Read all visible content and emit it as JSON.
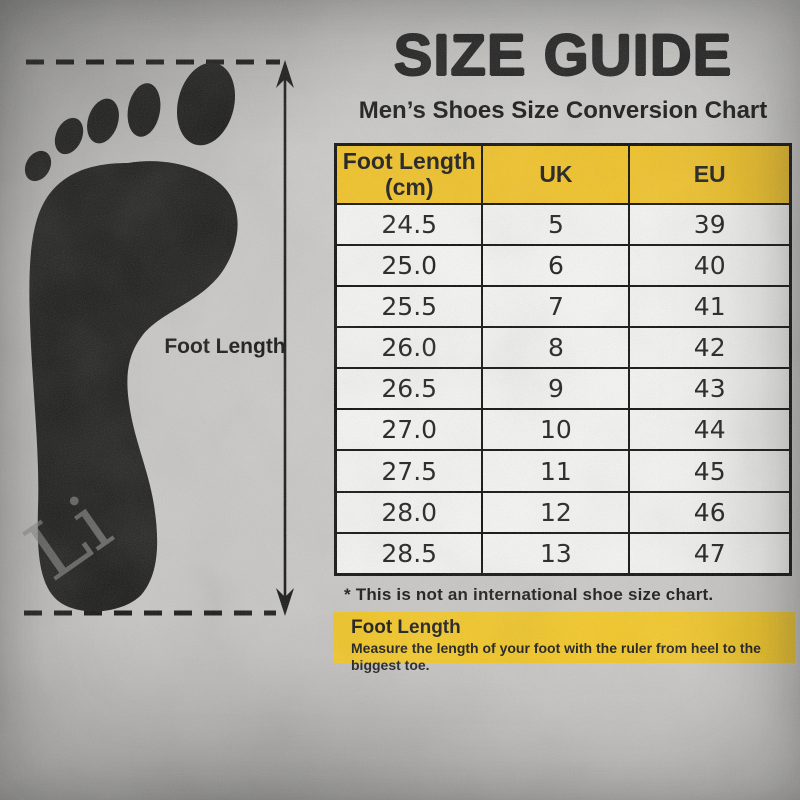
{
  "header": {
    "title": "SIZE GUIDE",
    "subtitle": "Men’s Shoes Size Conversion Chart"
  },
  "diagram": {
    "foot_length_label": "Foot Length",
    "watermark": "Li",
    "icons": [
      "footprint-icon",
      "measurement-arrow-icon",
      "dashed-measure-line-icon"
    ]
  },
  "table": {
    "columns": [
      "Foot Length\n(cm)",
      "UK",
      "EU"
    ],
    "rows": [
      [
        "24.5",
        "5",
        "39"
      ],
      [
        "25.0",
        "6",
        "40"
      ],
      [
        "25.5",
        "7",
        "41"
      ],
      [
        "26.0",
        "8",
        "42"
      ],
      [
        "26.5",
        "9",
        "43"
      ],
      [
        "27.0",
        "10",
        "44"
      ],
      [
        "27.5",
        "11",
        "45"
      ],
      [
        "28.0",
        "12",
        "46"
      ],
      [
        "28.5",
        "13",
        "47"
      ]
    ]
  },
  "footnote": "* This is not an international shoe size chart.",
  "footer_box": {
    "title": "Foot Length",
    "description": "Measure the length of your foot with the ruler from heel to the biggest toe."
  },
  "colors": {
    "header_yellow": "#F2C11E",
    "footer_yellow": "#F5C71E",
    "cell_bg": "#F6F6F4",
    "ink": "#141414",
    "background_gray": "#C8C7C5"
  }
}
